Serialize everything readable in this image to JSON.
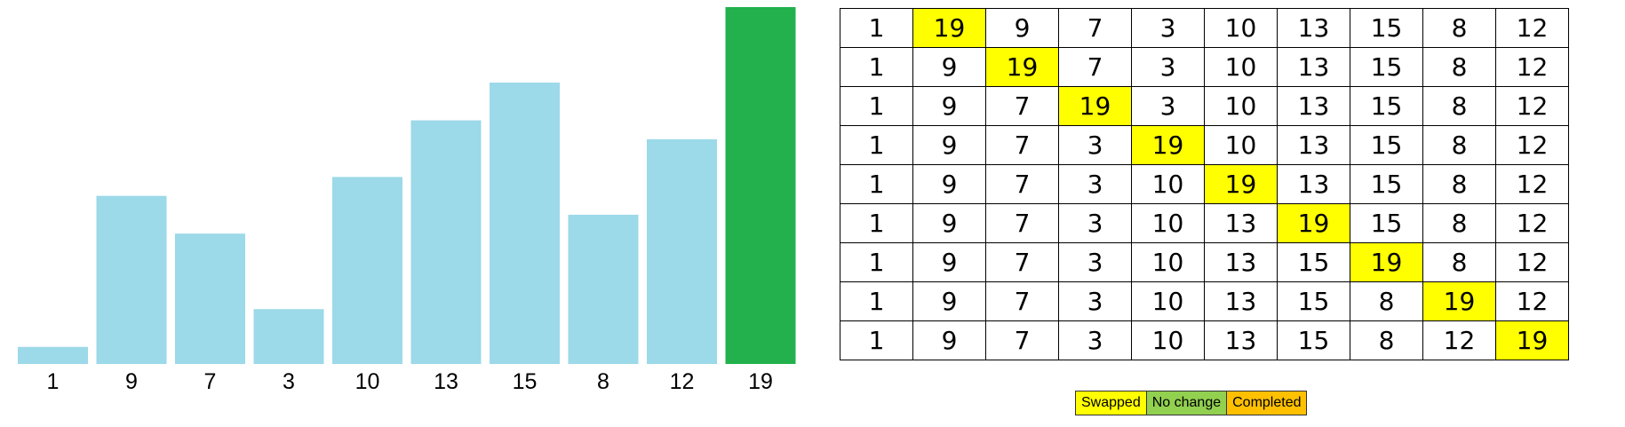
{
  "chart_data": {
    "type": "bar",
    "categories": [
      "1",
      "9",
      "7",
      "3",
      "10",
      "13",
      "15",
      "8",
      "12",
      "19"
    ],
    "values": [
      1,
      9,
      7,
      3,
      10,
      13,
      15,
      8,
      12,
      19
    ],
    "highlight_index": 9,
    "colors": {
      "bar": "#9cd9e9",
      "highlight": "#22b14c"
    },
    "ylim": [
      0,
      19
    ]
  },
  "table": {
    "rows": [
      [
        "1",
        "19",
        "9",
        "7",
        "3",
        "10",
        "13",
        "15",
        "8",
        "12"
      ],
      [
        "1",
        "9",
        "19",
        "7",
        "3",
        "10",
        "13",
        "15",
        "8",
        "12"
      ],
      [
        "1",
        "9",
        "7",
        "19",
        "3",
        "10",
        "13",
        "15",
        "8",
        "12"
      ],
      [
        "1",
        "9",
        "7",
        "3",
        "19",
        "10",
        "13",
        "15",
        "8",
        "12"
      ],
      [
        "1",
        "9",
        "7",
        "3",
        "10",
        "19",
        "13",
        "15",
        "8",
        "12"
      ],
      [
        "1",
        "9",
        "7",
        "3",
        "10",
        "13",
        "19",
        "15",
        "8",
        "12"
      ],
      [
        "1",
        "9",
        "7",
        "3",
        "10",
        "13",
        "15",
        "19",
        "8",
        "12"
      ],
      [
        "1",
        "9",
        "7",
        "3",
        "10",
        "13",
        "15",
        "8",
        "19",
        "12"
      ],
      [
        "1",
        "9",
        "7",
        "3",
        "10",
        "13",
        "15",
        "8",
        "12",
        "19"
      ]
    ],
    "highlighted": [
      [
        0,
        1
      ],
      [
        1,
        2
      ],
      [
        2,
        3
      ],
      [
        3,
        4
      ],
      [
        4,
        5
      ],
      [
        5,
        6
      ],
      [
        6,
        7
      ],
      [
        7,
        8
      ],
      [
        8,
        9
      ]
    ],
    "highlight_color": "#ffff00"
  },
  "legend": [
    {
      "label": "Swapped",
      "color": "#ffff00"
    },
    {
      "label": "No change",
      "color": "#92d050"
    },
    {
      "label": "Completed",
      "color": "#ffc000"
    }
  ]
}
